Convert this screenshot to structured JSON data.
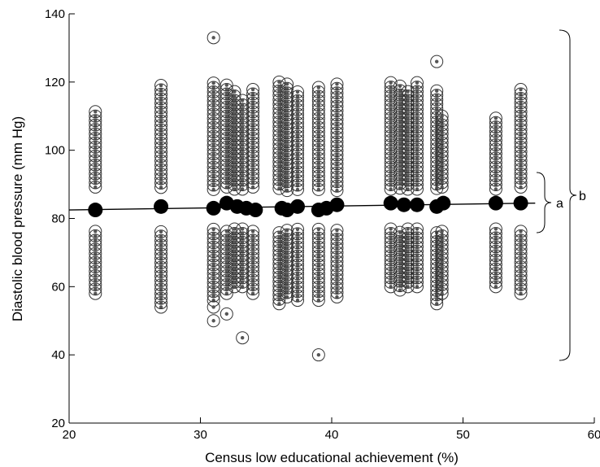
{
  "chart_data": {
    "type": "scatter",
    "xlabel": "Census low educational achievement (%)",
    "ylabel": "Diastolic blood pressure (mm Hg)",
    "xlim": [
      20,
      60
    ],
    "ylim": [
      20,
      140
    ],
    "xticks": [
      "20",
      "30",
      "40",
      "50",
      "60"
    ],
    "yticks": [
      "20",
      "40",
      "60",
      "80",
      "100",
      "120",
      "140"
    ],
    "grid": false,
    "columns": [
      {
        "x": 22.0,
        "low": 58,
        "high": 112,
        "gap": [
          77,
          88
        ],
        "extra": []
      },
      {
        "x": 27.0,
        "low": 54,
        "high": 120,
        "gap": [
          77,
          88
        ],
        "extra": []
      },
      {
        "x": 31.0,
        "low": 56,
        "high": 120,
        "gap": [
          77,
          88
        ],
        "extra": [
          133,
          54,
          50
        ]
      },
      {
        "x": 32.0,
        "low": 58,
        "high": 120,
        "gap": [
          77,
          88
        ],
        "extra": [
          52
        ]
      },
      {
        "x": 32.6,
        "low": 60,
        "high": 118,
        "gap": [
          77,
          88
        ],
        "extra": []
      },
      {
        "x": 33.2,
        "low": 60,
        "high": 115,
        "gap": [
          77,
          88
        ],
        "extra": [
          45
        ]
      },
      {
        "x": 34.0,
        "low": 58,
        "high": 118,
        "gap": [
          77,
          88
        ],
        "extra": []
      },
      {
        "x": 36.0,
        "low": 55,
        "high": 120,
        "gap": [
          77,
          88
        ],
        "extra": []
      },
      {
        "x": 36.6,
        "low": 57,
        "high": 120,
        "gap": [
          77,
          88
        ],
        "extra": []
      },
      {
        "x": 37.4,
        "low": 56,
        "high": 118,
        "gap": [
          77,
          88
        ],
        "extra": []
      },
      {
        "x": 39.0,
        "low": 56,
        "high": 119,
        "gap": [
          77,
          88
        ],
        "extra": [
          40
        ]
      },
      {
        "x": 40.4,
        "low": 57,
        "high": 120,
        "gap": [
          77,
          88
        ],
        "extra": []
      },
      {
        "x": 44.5,
        "low": 60,
        "high": 120,
        "gap": [
          77,
          88
        ],
        "extra": []
      },
      {
        "x": 45.2,
        "low": 59,
        "high": 120,
        "gap": [
          77,
          88
        ],
        "extra": []
      },
      {
        "x": 45.8,
        "low": 60,
        "high": 118,
        "gap": [
          77,
          88
        ],
        "extra": []
      },
      {
        "x": 46.5,
        "low": 60,
        "high": 120,
        "gap": [
          77,
          88
        ],
        "extra": []
      },
      {
        "x": 48.0,
        "low": 55,
        "high": 118,
        "gap": [
          77,
          88
        ],
        "extra": [
          126
        ]
      },
      {
        "x": 48.4,
        "low": 58,
        "high": 110,
        "gap": [
          77,
          88
        ],
        "extra": []
      },
      {
        "x": 52.5,
        "low": 60,
        "high": 110,
        "gap": [
          77,
          88
        ],
        "extra": []
      },
      {
        "x": 54.4,
        "low": 58,
        "high": 118,
        "gap": [
          77,
          88
        ],
        "extra": []
      }
    ],
    "means": [
      {
        "x": 22.0,
        "y": 82.5
      },
      {
        "x": 27.0,
        "y": 83.5
      },
      {
        "x": 31.0,
        "y": 83.0
      },
      {
        "x": 32.0,
        "y": 84.5
      },
      {
        "x": 32.8,
        "y": 83.5
      },
      {
        "x": 33.5,
        "y": 83.0
      },
      {
        "x": 34.2,
        "y": 82.5
      },
      {
        "x": 36.2,
        "y": 83.0
      },
      {
        "x": 36.6,
        "y": 82.5
      },
      {
        "x": 37.4,
        "y": 83.5
      },
      {
        "x": 39.0,
        "y": 82.5
      },
      {
        "x": 39.6,
        "y": 83.0
      },
      {
        "x": 40.4,
        "y": 84.0
      },
      {
        "x": 44.5,
        "y": 84.5
      },
      {
        "x": 45.5,
        "y": 84.0
      },
      {
        "x": 46.5,
        "y": 84.0
      },
      {
        "x": 48.0,
        "y": 83.5
      },
      {
        "x": 48.5,
        "y": 84.5
      },
      {
        "x": 52.5,
        "y": 84.5
      },
      {
        "x": 54.4,
        "y": 84.5
      }
    ],
    "fit_line": {
      "x": [
        20,
        55.5
      ],
      "y": [
        82.5,
        84.5
      ]
    },
    "braces": [
      {
        "label": "a",
        "y_range": [
          62,
          83
        ]
      },
      {
        "label": "b",
        "y_range": [
          38,
          83
        ]
      }
    ]
  }
}
